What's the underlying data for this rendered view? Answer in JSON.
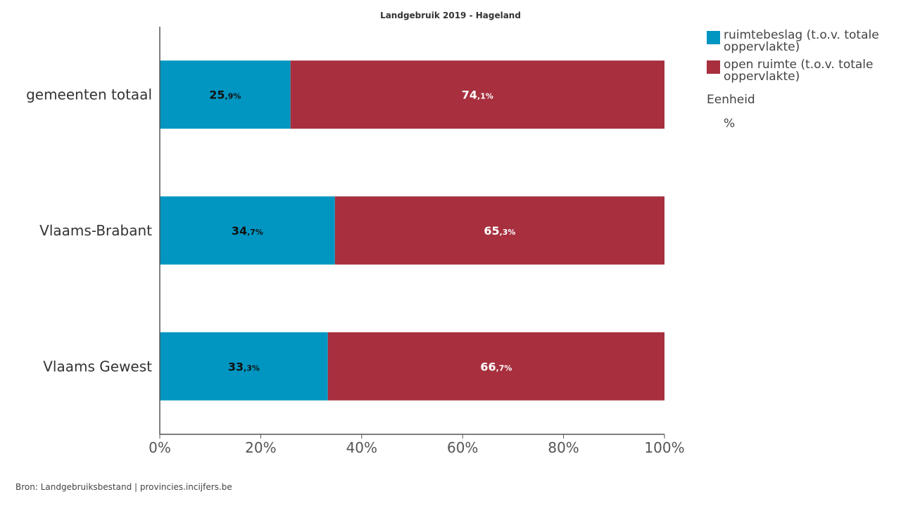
{
  "chart_data": {
    "type": "bar",
    "orientation": "horizontal",
    "stacked": true,
    "title": "Landgebruik 2019 - Hageland",
    "categories": [
      "gemeenten totaal",
      "Vlaams-Brabant",
      "Vlaams Gewest"
    ],
    "series": [
      {
        "name": "ruimtebeslag (t.o.v. totale oppervlakte)",
        "values": [
          25.9,
          34.7,
          33.3
        ],
        "color": "#0096c1",
        "label_color": "#111111"
      },
      {
        "name": "open ruimte (t.o.v. totale oppervlakte)",
        "values": [
          74.1,
          65.3,
          66.7
        ],
        "color": "#a72f3e",
        "label_color": "#ffffff"
      }
    ],
    "data_labels": [
      [
        {
          "int": "25",
          "dec": ",9%"
        },
        {
          "int": "34",
          "dec": ",7%"
        },
        {
          "int": "33",
          "dec": ",3%"
        }
      ],
      [
        {
          "int": "74",
          "dec": ",1%"
        },
        {
          "int": "65",
          "dec": ",3%"
        },
        {
          "int": "66",
          "dec": ",7%"
        }
      ]
    ],
    "xlim": [
      0,
      100
    ],
    "x_ticks": [
      0,
      20,
      40,
      60,
      80,
      100
    ],
    "x_tick_labels": [
      "0%",
      "20%",
      "40%",
      "60%",
      "80%",
      "100%"
    ],
    "xlabel": "",
    "ylabel": "",
    "grid": false,
    "legend_position": "right"
  },
  "legend": {
    "unit_heading": "Eenheid",
    "unit_value": "%"
  },
  "footer": {
    "source": "Bron: Landgebruiksbestand | provincies.incijfers.be"
  }
}
